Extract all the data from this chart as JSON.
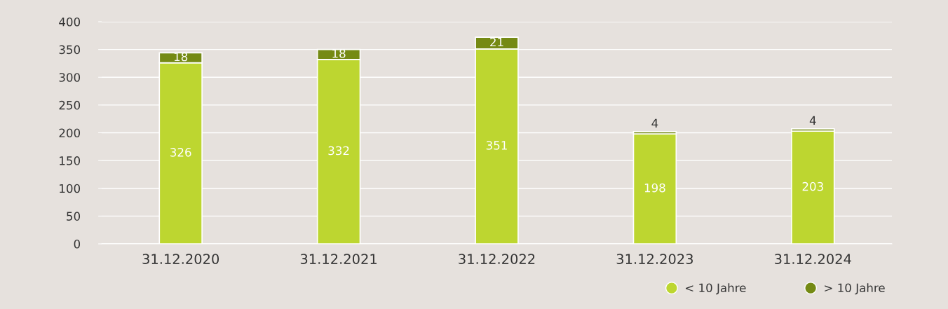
{
  "chart_data": {
    "type": "bar",
    "stacked": true,
    "categories": [
      "31.12.2020",
      "31.12.2021",
      "31.12.2022",
      "31.12.2023",
      "31.12.2024"
    ],
    "series": [
      {
        "name": "< 10 Jahre",
        "color": "#bdd630",
        "values": [
          326,
          332,
          351,
          198,
          203
        ]
      },
      {
        "name": "> 10 Jahre",
        "color": "#758a14",
        "values": [
          18,
          18,
          21,
          4,
          4
        ]
      }
    ],
    "ylim": [
      0,
      400
    ],
    "yticks": [
      0,
      50,
      100,
      150,
      200,
      250,
      300,
      350,
      400
    ],
    "grid": "y",
    "legend": "bottom right",
    "data_labels": true
  }
}
